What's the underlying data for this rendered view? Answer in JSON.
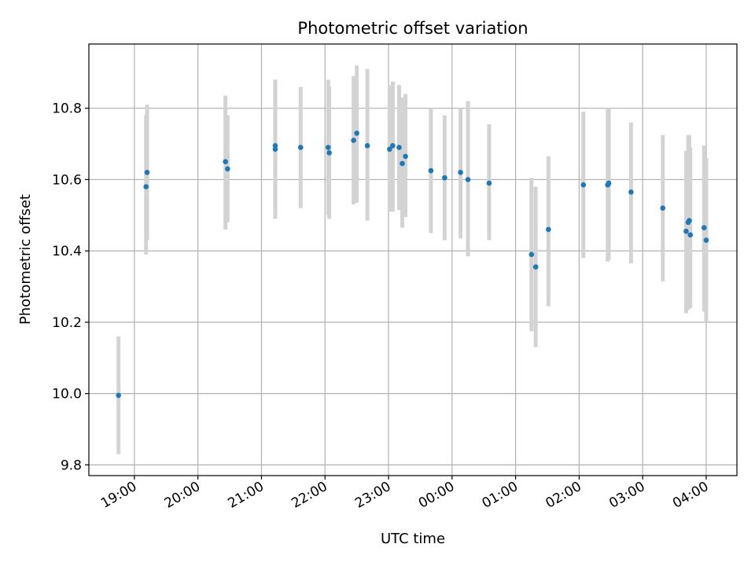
{
  "chart_data": {
    "type": "scatter",
    "title": "Photometric offset variation",
    "xlabel": "UTC time",
    "ylabel": "Photometric offset",
    "grid": true,
    "marker_color": "#1f77b4",
    "errorbar_color": "#d3d3d3",
    "x_ticks": [
      "19:00",
      "20:00",
      "21:00",
      "22:00",
      "23:00",
      "00:00",
      "01:00",
      "02:00",
      "03:00",
      "04:00"
    ],
    "y_ticks": [
      "9.8",
      "10.0",
      "10.2",
      "10.4",
      "10.6",
      "10.8"
    ],
    "xlim": [
      "18:17",
      "04:29"
    ],
    "ylim": [
      9.77,
      10.98
    ],
    "x_unit": "UTC (HH:MM, night spanning midnight)",
    "points": [
      {
        "x": "18:45",
        "y": 9.995,
        "ylow": 9.83,
        "yhigh": 10.16
      },
      {
        "x": "19:11",
        "y": 10.58,
        "ylow": 10.39,
        "yhigh": 10.78
      },
      {
        "x": "19:12",
        "y": 10.62,
        "ylow": 10.43,
        "yhigh": 10.81
      },
      {
        "x": "20:26",
        "y": 10.65,
        "ylow": 10.46,
        "yhigh": 10.835
      },
      {
        "x": "20:28",
        "y": 10.63,
        "ylow": 10.48,
        "yhigh": 10.78
      },
      {
        "x": "21:13",
        "y": 10.685,
        "ylow": 10.49,
        "yhigh": 10.88
      },
      {
        "x": "21:13",
        "y": 10.695,
        "ylow": 10.51,
        "yhigh": 10.88
      },
      {
        "x": "21:37",
        "y": 10.69,
        "ylow": 10.52,
        "yhigh": 10.86
      },
      {
        "x": "22:03",
        "y": 10.69,
        "ylow": 10.5,
        "yhigh": 10.88
      },
      {
        "x": "22:04",
        "y": 10.675,
        "ylow": 10.49,
        "yhigh": 10.86
      },
      {
        "x": "22:27",
        "y": 10.71,
        "ylow": 10.53,
        "yhigh": 10.89
      },
      {
        "x": "22:30",
        "y": 10.73,
        "ylow": 10.535,
        "yhigh": 10.92
      },
      {
        "x": "22:40",
        "y": 10.695,
        "ylow": 10.485,
        "yhigh": 10.91
      },
      {
        "x": "23:01",
        "y": 10.685,
        "ylow": 10.51,
        "yhigh": 10.865
      },
      {
        "x": "23:04",
        "y": 10.695,
        "ylow": 10.51,
        "yhigh": 10.875
      },
      {
        "x": "23:10",
        "y": 10.69,
        "ylow": 10.515,
        "yhigh": 10.865
      },
      {
        "x": "23:13",
        "y": 10.645,
        "ylow": 10.465,
        "yhigh": 10.83
      },
      {
        "x": "23:16",
        "y": 10.665,
        "ylow": 10.495,
        "yhigh": 10.84
      },
      {
        "x": "23:40",
        "y": 10.625,
        "ylow": 10.45,
        "yhigh": 10.8
      },
      {
        "x": "23:53",
        "y": 10.605,
        "ylow": 10.43,
        "yhigh": 10.78
      },
      {
        "x": "00:08",
        "y": 10.62,
        "ylow": 10.435,
        "yhigh": 10.8
      },
      {
        "x": "00:15",
        "y": 10.6,
        "ylow": 10.385,
        "yhigh": 10.82
      },
      {
        "x": "00:35",
        "y": 10.59,
        "ylow": 10.43,
        "yhigh": 10.755
      },
      {
        "x": "01:15",
        "y": 10.39,
        "ylow": 10.175,
        "yhigh": 10.605
      },
      {
        "x": "01:19",
        "y": 10.355,
        "ylow": 10.13,
        "yhigh": 10.58
      },
      {
        "x": "01:31",
        "y": 10.46,
        "ylow": 10.245,
        "yhigh": 10.665
      },
      {
        "x": "02:04",
        "y": 10.585,
        "ylow": 10.38,
        "yhigh": 10.79
      },
      {
        "x": "02:27",
        "y": 10.585,
        "ylow": 10.37,
        "yhigh": 10.8
      },
      {
        "x": "02:28",
        "y": 10.59,
        "ylow": 10.375,
        "yhigh": 10.8
      },
      {
        "x": "02:49",
        "y": 10.565,
        "ylow": 10.365,
        "yhigh": 10.76
      },
      {
        "x": "03:19",
        "y": 10.52,
        "ylow": 10.315,
        "yhigh": 10.725
      },
      {
        "x": "03:41",
        "y": 10.455,
        "ylow": 10.225,
        "yhigh": 10.68
      },
      {
        "x": "03:43",
        "y": 10.48,
        "ylow": 10.235,
        "yhigh": 10.725
      },
      {
        "x": "03:44",
        "y": 10.485,
        "ylow": 10.24,
        "yhigh": 10.725
      },
      {
        "x": "03:45",
        "y": 10.445,
        "ylow": 10.24,
        "yhigh": 10.69
      },
      {
        "x": "03:58",
        "y": 10.465,
        "ylow": 10.23,
        "yhigh": 10.695
      },
      {
        "x": "04:00",
        "y": 10.43,
        "ylow": 10.2,
        "yhigh": 10.66
      }
    ]
  }
}
